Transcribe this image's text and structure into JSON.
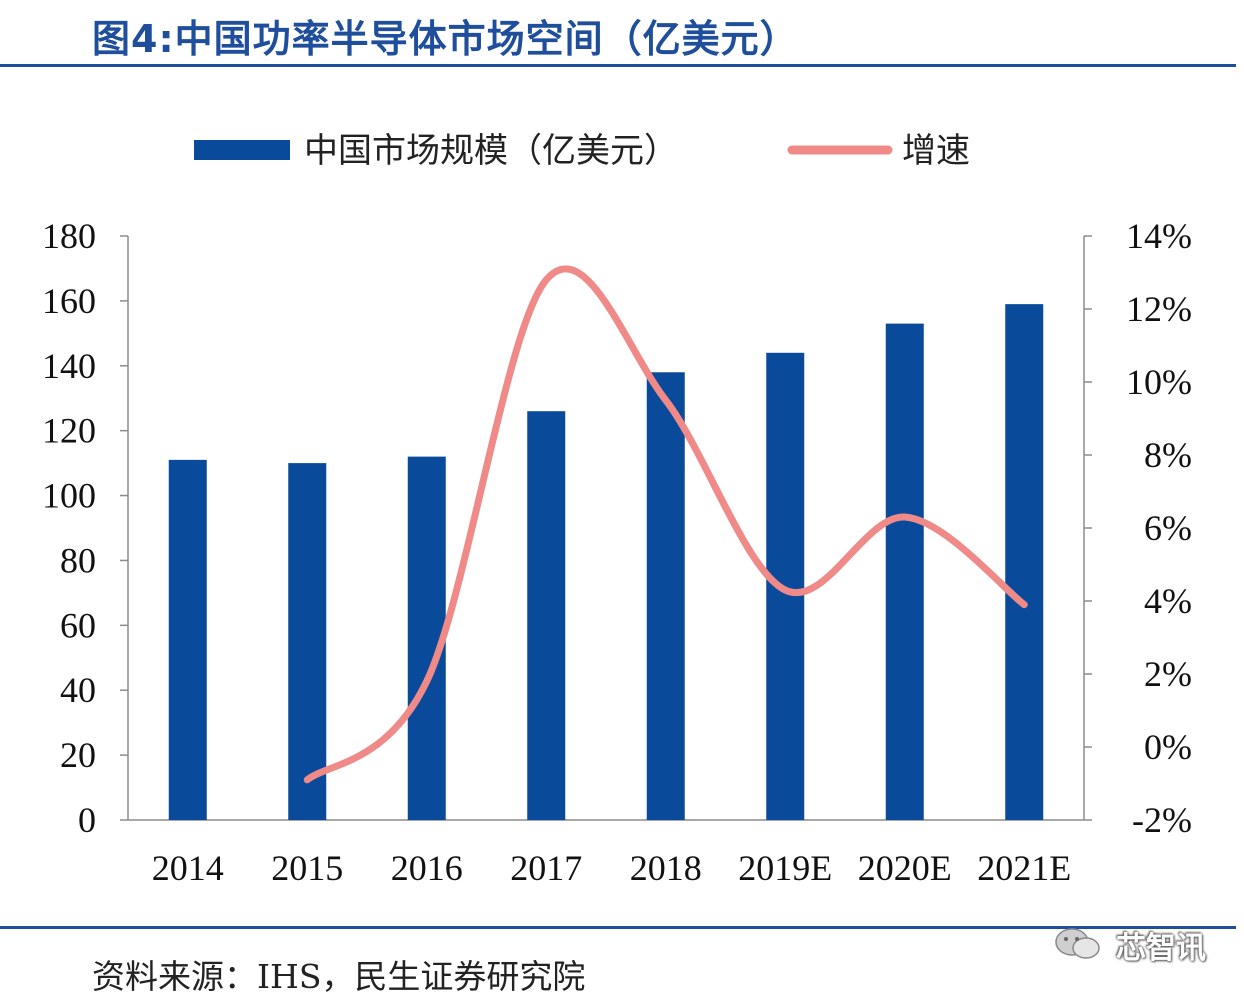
{
  "title": "图4:中国功率半导体市场空间（亿美元）",
  "source": "资料来源：IHS，民生证券研究院",
  "watermark": "芯智讯",
  "colors": {
    "bar": "#0a4a9a",
    "line": "#f08a88",
    "title": "#1f4e9c",
    "rule": "#1f4e9c"
  },
  "chart_data": {
    "type": "bar",
    "categories": [
      "2014",
      "2015",
      "2016",
      "2017",
      "2018",
      "2019E",
      "2020E",
      "2021E"
    ],
    "series": [
      {
        "name": "中国市场规模（亿美元）",
        "type": "bar",
        "axis": "left",
        "values": [
          111,
          110,
          112,
          126,
          138,
          144,
          153,
          159
        ]
      },
      {
        "name": "增速",
        "type": "line",
        "axis": "right",
        "values": [
          null,
          -0.9,
          1.8,
          12.8,
          9.5,
          4.3,
          6.3,
          3.9
        ]
      }
    ],
    "y_left": {
      "ylim": [
        0,
        180
      ],
      "ticks": [
        "0",
        "20",
        "40",
        "60",
        "80",
        "100",
        "120",
        "140",
        "160",
        "180"
      ]
    },
    "y_right": {
      "ylim": [
        -2,
        14
      ],
      "ticks": [
        "-2%",
        "0%",
        "2%",
        "4%",
        "6%",
        "8%",
        "10%",
        "12%",
        "14%"
      ]
    },
    "legend": "top"
  }
}
